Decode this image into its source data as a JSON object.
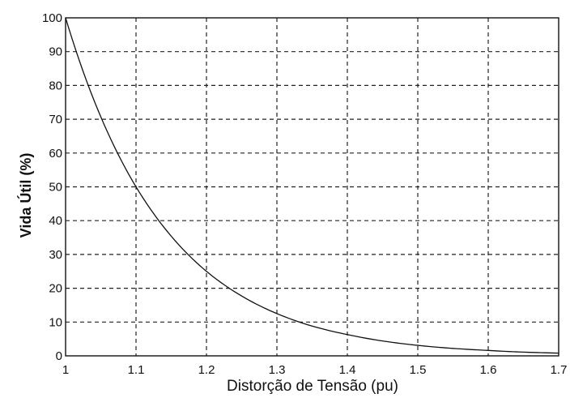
{
  "chart_data": {
    "type": "line",
    "xlabel": "Distorção de Tensão (pu)",
    "ylabel": "Vida Útil (%)",
    "xlim": [
      1,
      1.7
    ],
    "ylim": [
      0,
      100
    ],
    "x_ticks": [
      "1",
      "1.1",
      "1.2",
      "1.3",
      "1.4",
      "1.5",
      "1.6",
      "1.7"
    ],
    "y_ticks": [
      "0",
      "10",
      "20",
      "30",
      "40",
      "50",
      "60",
      "70",
      "80",
      "90",
      "100"
    ],
    "grid": true,
    "series": [
      {
        "x": [
          1.0,
          1.05,
          1.1,
          1.15,
          1.2,
          1.25,
          1.3,
          1.35,
          1.4,
          1.45,
          1.5,
          1.55,
          1.6,
          1.65,
          1.7
        ],
        "y": [
          100,
          70.7,
          50,
          35.4,
          25,
          17.7,
          12.5,
          8.8,
          6.3,
          4.4,
          3.1,
          2.2,
          1.6,
          1.1,
          0.8
        ]
      }
    ]
  }
}
